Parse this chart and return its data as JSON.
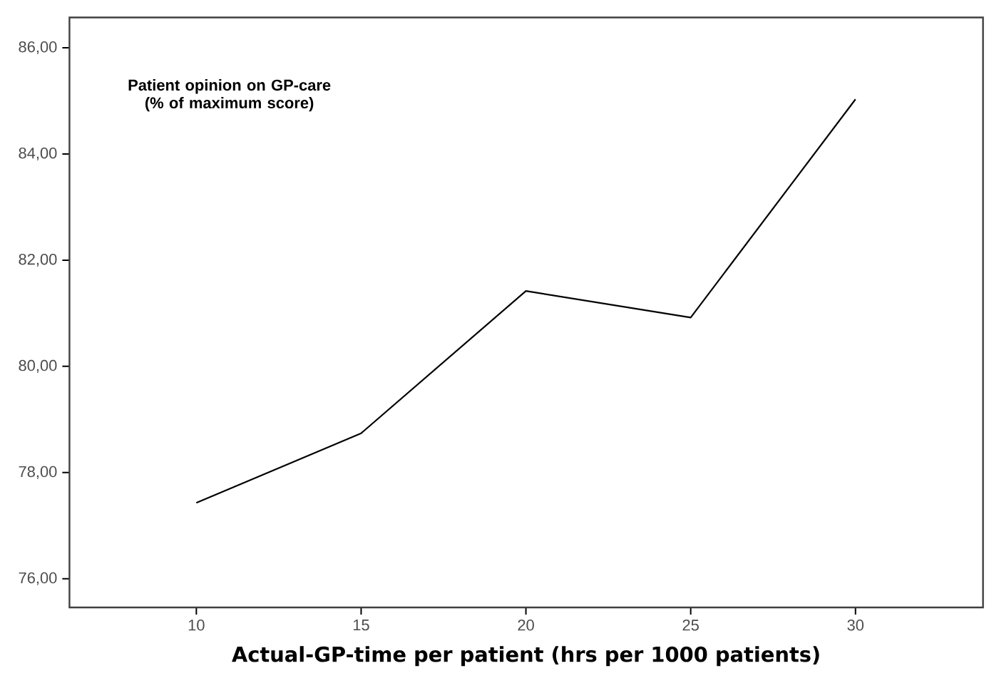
{
  "chart_data": {
    "type": "line",
    "xlabel": "Actual-GP-time per patient (hrs per 1000 patients)",
    "ylabel": "Patient opinion on GP-care (% of maximum score)",
    "x": [
      10,
      15,
      20,
      25,
      30
    ],
    "series": [
      {
        "color": "#000000",
        "values": [
          77.43,
          78.74,
          81.42,
          80.92,
          85.03
        ]
      }
    ],
    "xlim": [
      6.15,
      33.87
    ],
    "ylim": [
      75.46,
      86.57
    ],
    "xticks": [
      10,
      15,
      20,
      25,
      30
    ],
    "yticks": [
      {
        "value": 76,
        "label": "76,00"
      },
      {
        "value": 78,
        "label": "78,00"
      },
      {
        "value": 80,
        "label": "80,00"
      },
      {
        "value": 82,
        "label": "82,00"
      },
      {
        "value": 84,
        "label": "84,00"
      },
      {
        "value": 86,
        "label": "86,00"
      }
    ],
    "grid": false,
    "marker": "none",
    "line_style": "solid"
  }
}
